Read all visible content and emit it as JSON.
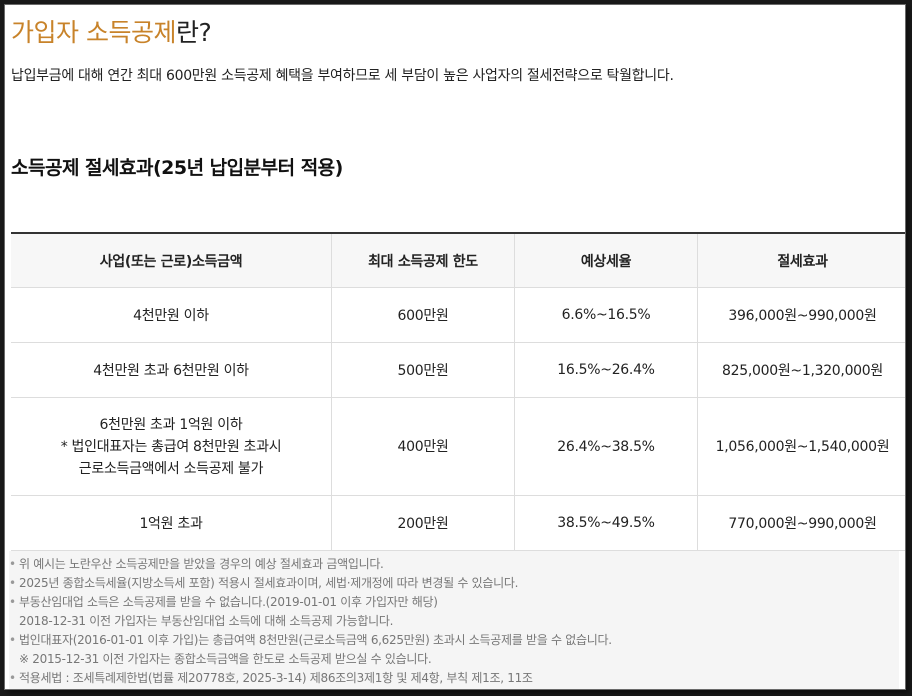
{
  "header": {
    "title_accent": "가입자 소득공제",
    "title_rest": "란?",
    "intro": "납입부금에 대해 연간 최대 600만원 소득공제 혜택을 부여하므로 세 부담이 높은 사업자의 절세전략으로 탁월합니다."
  },
  "section_title": "소득공제 절세효과(25년 납입분부터 적용)",
  "table": {
    "headers": [
      "사업(또는 근로)소득금액",
      "최대 소득공제 한도",
      "예상세율",
      "절세효과"
    ],
    "rows": [
      {
        "income": [
          "4천만원 이하"
        ],
        "limit": "600만원",
        "rate": "6.6%~16.5%",
        "effect": "396,000원~990,000원"
      },
      {
        "income": [
          "4천만원 초과 6천만원 이하"
        ],
        "limit": "500만원",
        "rate": "16.5%~26.4%",
        "effect": "825,000원~1,320,000원"
      },
      {
        "income": [
          "6천만원 초과 1억원 이하",
          "* 법인대표자는 총급여 8천만원 초과시",
          "근로소득금액에서 소득공제 불가"
        ],
        "limit": "400만원",
        "rate": "26.4%~38.5%",
        "effect": "1,056,000원~1,540,000원"
      },
      {
        "income": [
          "1억원 초과"
        ],
        "limit": "200만원",
        "rate": "38.5%~49.5%",
        "effect": "770,000원~990,000원"
      }
    ]
  },
  "notes": [
    {
      "bullet": "•",
      "text": "위 예시는 노란우산 소득공제만을 받았을 경우의 예상 절세효과 금액입니다."
    },
    {
      "bullet": "•",
      "text": "2025년 종합소득세율(지방소득세 포함) 적용시 절세효과이며, 세법·제개정에 따라 변경될 수 있습니다."
    },
    {
      "bullet": "•",
      "text": "부동산임대업 소득은 소득공제를 받을 수 없습니다.(2019-01-01 이후 가입자만 해당)"
    },
    {
      "bullet": "",
      "text": "2018-12-31 이전 가입자는 부동산임대업 소득에 대해 소득공제 가능합니다."
    },
    {
      "bullet": "•",
      "text": "법인대표자(2016-01-01 이후 가입)는 총급여액 8천만원(근로소득금액 6,625만원) 초과시 소득공제를 받을 수 없습니다."
    },
    {
      "bullet": "",
      "text": "※ 2015-12-31 이전 가입자는 종합소득금액을 한도로 소득공제 받으실 수 있습니다."
    },
    {
      "bullet": "•",
      "text": "적용세법 : 조세특례제한법(법률 제20778호, 2025-3-14) 제86조의3제1항 및 제4항, 부칙 제1조, 11조"
    }
  ]
}
